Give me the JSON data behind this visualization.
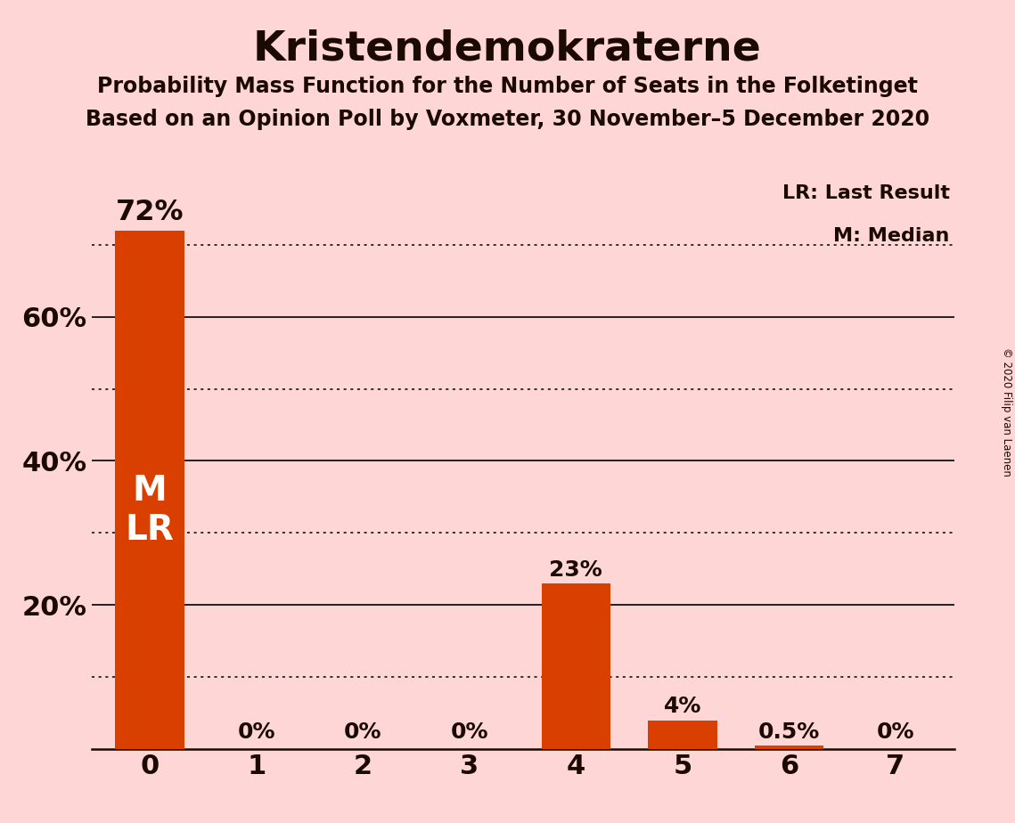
{
  "title": "Kristendemokraterne",
  "subtitle1": "Probability Mass Function for the Number of Seats in the Folketinget",
  "subtitle2": "Based on an Opinion Poll by Voxmeter, 30 November–5 December 2020",
  "copyright": "© 2020 Filip van Laenen",
  "categories": [
    0,
    1,
    2,
    3,
    4,
    5,
    6,
    7
  ],
  "values": [
    0.72,
    0.0,
    0.0,
    0.0,
    0.23,
    0.04,
    0.005,
    0.0
  ],
  "bar_labels": [
    "72%",
    "0%",
    "0%",
    "0%",
    "23%",
    "4%",
    "0.5%",
    "0%"
  ],
  "bar_color": "#D94000",
  "background_color": "#FFD6D6",
  "text_color": "#1a0a00",
  "legend_lr": "LR: Last Result",
  "legend_m": "M: Median",
  "ylim": [
    0,
    0.8
  ],
  "solid_gridlines": [
    0.2,
    0.4,
    0.6
  ],
  "dotted_gridlines": [
    0.1,
    0.3,
    0.5,
    0.7
  ],
  "bar_width": 0.65
}
